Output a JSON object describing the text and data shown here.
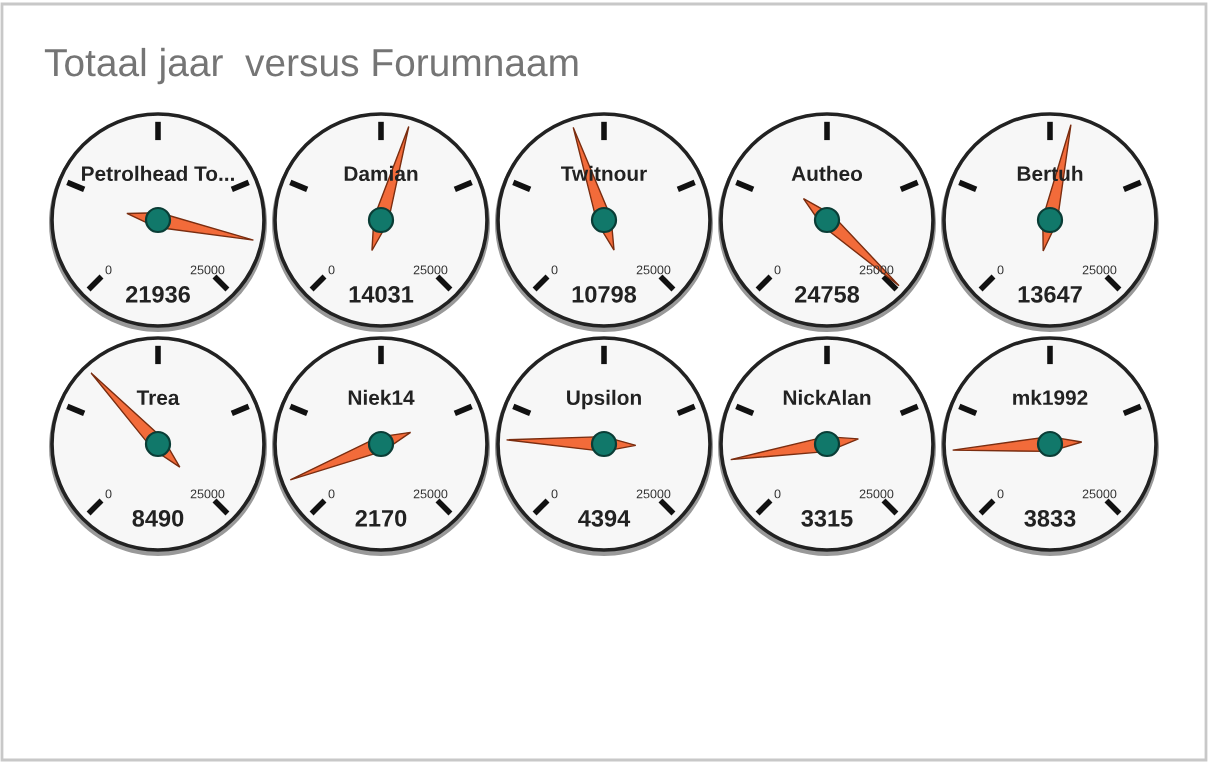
{
  "chart_data": [
    {
      "type": "other",
      "title": "Totaal jaar  versus Forumnaam",
      "subtitle": "Petrolhead To...",
      "values": [
        21936
      ],
      "annotations": [
        "0",
        "25000"
      ],
      "data_labels": true
    },
    {
      "type": "other",
      "subtitle": "Damian",
      "values": [
        14031
      ],
      "annotations": [
        "0",
        "25000"
      ],
      "data_labels": true
    },
    {
      "type": "other",
      "subtitle": "Twitnour",
      "values": [
        10798
      ],
      "annotations": [
        "0",
        "25000"
      ],
      "data_labels": true
    },
    {
      "type": "other",
      "subtitle": "Autheo",
      "values": [
        24758
      ],
      "annotations": [
        "0",
        "25000"
      ],
      "data_labels": true
    },
    {
      "type": "other",
      "subtitle": "Bertuh",
      "values": [
        13647
      ],
      "annotations": [
        "0",
        "25000"
      ],
      "data_labels": true
    },
    {
      "type": "other",
      "subtitle": "Trea",
      "values": [
        8490
      ],
      "annotations": [
        "0",
        "25000"
      ],
      "data_labels": true
    },
    {
      "type": "other",
      "subtitle": "Niek14",
      "values": [
        2170
      ],
      "annotations": [
        "0",
        "25000"
      ],
      "data_labels": true
    },
    {
      "type": "other",
      "subtitle": "Upsilon",
      "values": [
        4394
      ],
      "annotations": [
        "0",
        "25000"
      ],
      "data_labels": true
    },
    {
      "type": "other",
      "subtitle": "NickAlan",
      "values": [
        3315
      ],
      "annotations": [
        "0",
        "25000"
      ],
      "data_labels": true
    },
    {
      "type": "other",
      "subtitle": "mk1992",
      "values": [
        3833
      ],
      "annotations": [
        "0",
        "25000"
      ],
      "data_labels": true
    }
  ]
}
